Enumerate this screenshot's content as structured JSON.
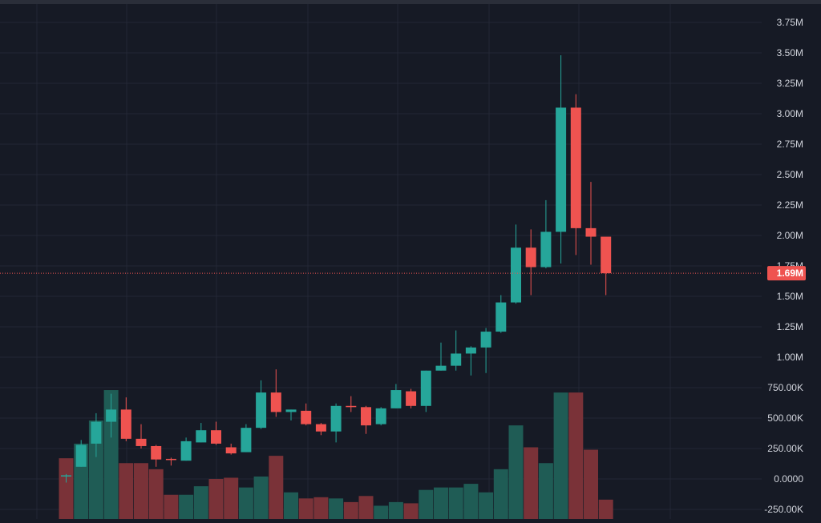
{
  "chart_data": {
    "type": "candlestick",
    "title": "",
    "ylim": [
      -250000,
      3850000
    ],
    "y_ticks": [
      {
        "value": 3750000,
        "label": "3.75M"
      },
      {
        "value": 3500000,
        "label": "3.50M"
      },
      {
        "value": 3250000,
        "label": "3.25M"
      },
      {
        "value": 3000000,
        "label": "3.00M"
      },
      {
        "value": 2750000,
        "label": "2.75M"
      },
      {
        "value": 2500000,
        "label": "2.50M"
      },
      {
        "value": 2250000,
        "label": "2.25M"
      },
      {
        "value": 2000000,
        "label": "2.00M"
      },
      {
        "value": 1750000,
        "label": "1.75M"
      },
      {
        "value": 1500000,
        "label": "1.50M"
      },
      {
        "value": 1250000,
        "label": "1.25M"
      },
      {
        "value": 1000000,
        "label": "1.00M"
      },
      {
        "value": 750000,
        "label": "750.00K"
      },
      {
        "value": 500000,
        "label": "500.00K"
      },
      {
        "value": 250000,
        "label": "250.00K"
      },
      {
        "value": 0,
        "label": "0.0000"
      },
      {
        "value": -250000,
        "label": "-250.00K"
      }
    ],
    "current_price": {
      "value": 1690000,
      "label": "1.69M"
    },
    "colors": {
      "up": "#26a69a",
      "down": "#ef5350",
      "background": "#161a25",
      "grid": "#232735",
      "axis_text": "#d1d4dc"
    },
    "grid": true,
    "candles": [
      {
        "o": 30000,
        "h": 40000,
        "l": -30000,
        "c": 30000
      },
      {
        "o": 100000,
        "h": 320000,
        "l": 100000,
        "c": 280000
      },
      {
        "o": 290000,
        "h": 540000,
        "l": 180000,
        "c": 470000
      },
      {
        "o": 470000,
        "h": 700000,
        "l": 340000,
        "c": 570000
      },
      {
        "o": 570000,
        "h": 670000,
        "l": 310000,
        "c": 330000
      },
      {
        "o": 330000,
        "h": 450000,
        "l": 250000,
        "c": 270000
      },
      {
        "o": 270000,
        "h": 280000,
        "l": 100000,
        "c": 160000
      },
      {
        "o": 165000,
        "h": 175000,
        "l": 110000,
        "c": 160000
      },
      {
        "o": 150000,
        "h": 340000,
        "l": 150000,
        "c": 310000
      },
      {
        "o": 300000,
        "h": 460000,
        "l": 300000,
        "c": 400000
      },
      {
        "o": 400000,
        "h": 470000,
        "l": 280000,
        "c": 290000
      },
      {
        "o": 260000,
        "h": 290000,
        "l": 200000,
        "c": 210000
      },
      {
        "o": 220000,
        "h": 450000,
        "l": 220000,
        "c": 420000
      },
      {
        "o": 420000,
        "h": 810000,
        "l": 410000,
        "c": 710000
      },
      {
        "o": 710000,
        "h": 900000,
        "l": 510000,
        "c": 550000
      },
      {
        "o": 550000,
        "h": 570000,
        "l": 480000,
        "c": 570000
      },
      {
        "o": 560000,
        "h": 620000,
        "l": 440000,
        "c": 450000
      },
      {
        "o": 450000,
        "h": 460000,
        "l": 360000,
        "c": 390000
      },
      {
        "o": 390000,
        "h": 620000,
        "l": 300000,
        "c": 600000
      },
      {
        "o": 600000,
        "h": 680000,
        "l": 550000,
        "c": 590000
      },
      {
        "o": 590000,
        "h": 600000,
        "l": 370000,
        "c": 440000
      },
      {
        "o": 450000,
        "h": 590000,
        "l": 440000,
        "c": 580000
      },
      {
        "o": 580000,
        "h": 780000,
        "l": 580000,
        "c": 730000
      },
      {
        "o": 720000,
        "h": 740000,
        "l": 580000,
        "c": 600000
      },
      {
        "o": 600000,
        "h": 890000,
        "l": 550000,
        "c": 890000
      },
      {
        "o": 890000,
        "h": 1120000,
        "l": 890000,
        "c": 930000
      },
      {
        "o": 930000,
        "h": 1220000,
        "l": 890000,
        "c": 1030000
      },
      {
        "o": 1030000,
        "h": 1090000,
        "l": 850000,
        "c": 1080000
      },
      {
        "o": 1080000,
        "h": 1240000,
        "l": 870000,
        "c": 1210000
      },
      {
        "o": 1210000,
        "h": 1510000,
        "l": 1200000,
        "c": 1450000
      },
      {
        "o": 1450000,
        "h": 2090000,
        "l": 1440000,
        "c": 1900000
      },
      {
        "o": 1900000,
        "h": 2050000,
        "l": 1510000,
        "c": 1740000
      },
      {
        "o": 1740000,
        "h": 2290000,
        "l": 1730000,
        "c": 2030000
      },
      {
        "o": 2030000,
        "h": 3480000,
        "l": 1770000,
        "c": 3050000
      },
      {
        "o": 3050000,
        "h": 3160000,
        "l": 1840000,
        "c": 2060000
      },
      {
        "o": 2060000,
        "h": 2440000,
        "l": 1760000,
        "c": 1990000
      },
      {
        "o": 1990000,
        "h": 1990000,
        "l": 1510000,
        "c": 1690000
      }
    ],
    "volume": [
      170000,
      290000,
      480000,
      730000,
      130000,
      130000,
      80000,
      -130000,
      -130000,
      -60000,
      0,
      10000,
      -70000,
      20000,
      190000,
      -110000,
      -160000,
      -150000,
      -160000,
      -190000,
      -140000,
      -220000,
      -190000,
      -200000,
      -90000,
      -70000,
      -70000,
      -40000,
      -110000,
      80000,
      440000,
      260000,
      130000,
      710000,
      710000,
      240000,
      -170000
    ],
    "volume_up": [
      false,
      true,
      true,
      true,
      false,
      false,
      false,
      false,
      true,
      true,
      false,
      false,
      true,
      true,
      false,
      true,
      false,
      false,
      true,
      false,
      false,
      true,
      true,
      false,
      true,
      true,
      true,
      true,
      true,
      true,
      true,
      false,
      true,
      true,
      false,
      false,
      false
    ]
  }
}
